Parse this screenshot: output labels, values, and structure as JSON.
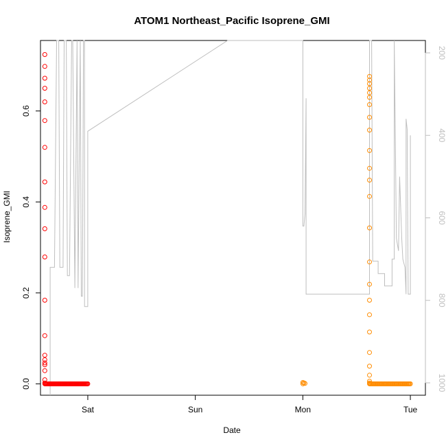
{
  "chart_data": {
    "type": "scatter",
    "title": "ATOM1 Northeast_Pacific Isoprene_GMI",
    "xlabel": "Date",
    "ylabel": "Isoprene_GMI",
    "x_ticks": [
      "Sat",
      "Sun",
      "Mon",
      "Tue"
    ],
    "x_range_days": [
      -0.44,
      3.14
    ],
    "ylim": [
      -0.025,
      0.755
    ],
    "y_ticks": [
      0.0,
      0.2,
      0.4,
      0.6
    ],
    "y2_ticks": [
      200,
      400,
      600,
      800,
      1000
    ],
    "y2lim": [
      1030,
      170
    ],
    "y2_reversed": true,
    "grid": false,
    "legend": "none",
    "colors": {
      "series1": "#ff0000",
      "series2": "#ff8c00",
      "pressure": "#bebebe",
      "axis": "#000000"
    },
    "series": [
      {
        "color": "#ff0000",
        "points": [
          [
            -0.4,
            0.724
          ],
          [
            -0.4,
            0.698
          ],
          [
            -0.4,
            0.672
          ],
          [
            -0.4,
            0.65
          ],
          [
            -0.4,
            0.62
          ],
          [
            -0.4,
            0.579
          ],
          [
            -0.4,
            0.52
          ],
          [
            -0.4,
            0.444
          ],
          [
            -0.4,
            0.388
          ],
          [
            -0.4,
            0.341
          ],
          [
            -0.4,
            0.279
          ],
          [
            -0.4,
            0.184
          ],
          [
            -0.4,
            0.106
          ],
          [
            -0.4,
            0.063
          ],
          [
            -0.4,
            0.053
          ],
          [
            -0.4,
            0.046
          ],
          [
            -0.4,
            0.042
          ],
          [
            -0.4,
            0.029
          ],
          [
            -0.4,
            0.009
          ],
          [
            -0.4,
            0.002
          ]
        ],
        "baseline": {
          "x_from": -0.4,
          "x_to": 0.0,
          "y": 0.0,
          "count": 60
        }
      },
      {
        "color": "#ff8c00",
        "points": [
          [
            2.0,
            0.0
          ],
          [
            2.01,
            0.002
          ],
          [
            2.02,
            0.001
          ],
          [
            2.0,
            0.003
          ],
          [
            2.62,
            0.676
          ],
          [
            2.62,
            0.668
          ],
          [
            2.62,
            0.66
          ],
          [
            2.62,
            0.65
          ],
          [
            2.62,
            0.64
          ],
          [
            2.62,
            0.63
          ],
          [
            2.62,
            0.614
          ],
          [
            2.62,
            0.586
          ],
          [
            2.62,
            0.558
          ],
          [
            2.62,
            0.513
          ],
          [
            2.62,
            0.474
          ],
          [
            2.62,
            0.448
          ],
          [
            2.62,
            0.412
          ],
          [
            2.62,
            0.343
          ],
          [
            2.62,
            0.268
          ],
          [
            2.62,
            0.219
          ],
          [
            2.62,
            0.184
          ],
          [
            2.62,
            0.152
          ],
          [
            2.62,
            0.114
          ],
          [
            2.62,
            0.069
          ],
          [
            2.62,
            0.039
          ],
          [
            2.62,
            0.019
          ],
          [
            2.62,
            0.006
          ],
          [
            2.62,
            0.002
          ]
        ],
        "baseline": {
          "x_from": 2.62,
          "x_to": 3.0,
          "y": 0.0,
          "count": 50
        }
      }
    ],
    "pressure_line": {
      "color": "#bebebe",
      "points": [
        [
          -0.35,
          1030
        ],
        [
          -0.35,
          720
        ],
        [
          -0.31,
          720
        ],
        [
          -0.29,
          170
        ],
        [
          -0.27,
          170
        ],
        [
          -0.26,
          720
        ],
        [
          -0.23,
          720
        ],
        [
          -0.22,
          170
        ],
        [
          -0.2,
          170
        ],
        [
          -0.19,
          740
        ],
        [
          -0.17,
          740
        ],
        [
          -0.15,
          170
        ],
        [
          -0.14,
          170
        ],
        [
          -0.12,
          770
        ],
        [
          -0.1,
          170
        ],
        [
          -0.09,
          770
        ],
        [
          -0.07,
          170
        ],
        [
          -0.06,
          790
        ],
        [
          -0.05,
          790
        ],
        [
          -0.04,
          170
        ],
        [
          -0.03,
          170
        ],
        [
          -0.03,
          815
        ],
        [
          0.0,
          815
        ],
        [
          0.0,
          390
        ],
        [
          1.3,
          170
        ],
        [
          2.0,
          170
        ],
        [
          2.0,
          620
        ],
        [
          2.01,
          620
        ],
        [
          2.02,
          590
        ],
        [
          2.03,
          310
        ],
        [
          2.03,
          785
        ],
        [
          2.62,
          785
        ],
        [
          2.62,
          170
        ],
        [
          2.64,
          170
        ],
        [
          2.65,
          705
        ],
        [
          2.7,
          705
        ],
        [
          2.7,
          735
        ],
        [
          2.76,
          735
        ],
        [
          2.76,
          765
        ],
        [
          2.83,
          765
        ],
        [
          2.83,
          700
        ],
        [
          2.85,
          700
        ],
        [
          2.85,
          170
        ],
        [
          2.86,
          400
        ],
        [
          2.87,
          650
        ],
        [
          2.89,
          680
        ],
        [
          2.9,
          500
        ],
        [
          2.92,
          650
        ],
        [
          2.93,
          700
        ],
        [
          2.95,
          720
        ],
        [
          2.96,
          785
        ],
        [
          2.96,
          360
        ],
        [
          2.97,
          385
        ],
        [
          2.98,
          785
        ],
        [
          3.0,
          785
        ],
        [
          3.0,
          400
        ]
      ]
    }
  }
}
